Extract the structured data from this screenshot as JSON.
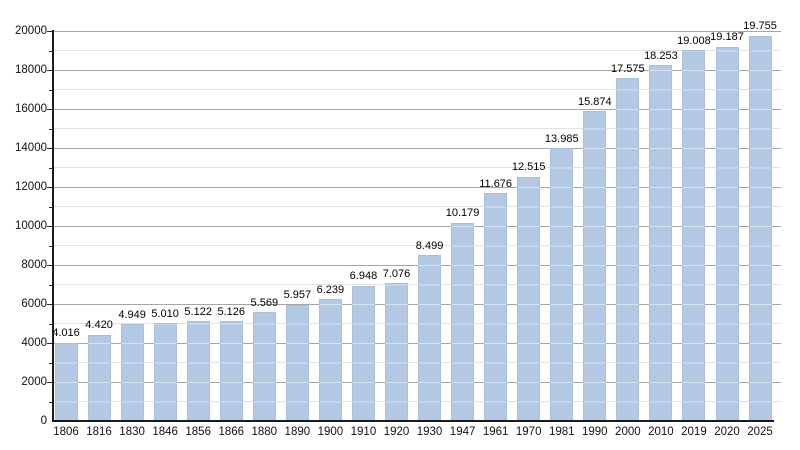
{
  "chart_data": {
    "type": "bar",
    "title": "",
    "xlabel": "",
    "ylabel": "",
    "categories": [
      "1806",
      "1816",
      "1830",
      "1846",
      "1856",
      "1866",
      "1880",
      "1890",
      "1900",
      "1910",
      "1920",
      "1930",
      "1947",
      "1961",
      "1970",
      "1981",
      "1990",
      "2000",
      "2010",
      "2019",
      "2020",
      "2025"
    ],
    "values": [
      4016,
      4420,
      4949,
      5010,
      5122,
      5126,
      5569,
      5957,
      6239,
      6948,
      7076,
      8499,
      10179,
      11676,
      12515,
      13985,
      15874,
      17575,
      18253,
      19008,
      19187,
      19755
    ],
    "value_labels": [
      "4.016",
      "4.420",
      "4.949",
      "5.010",
      "5.122",
      "5.126",
      "5.569",
      "5.957",
      "6.239",
      "6.948",
      "7.076",
      "8.499",
      "10.179",
      "11.676",
      "12.515",
      "13.985",
      "15.874",
      "17.575",
      "18.253",
      "19.008",
      "19.187",
      "19.755"
    ],
    "y_tick_labels": [
      "0",
      "2000",
      "4000",
      "6000",
      "8000",
      "10000",
      "12000",
      "14000",
      "16000",
      "18000",
      "20000"
    ],
    "ylim": [
      0,
      20000
    ],
    "y_major_step": 2000,
    "y_minor_step": 1000,
    "grid": "on",
    "legend": "none",
    "colors": {
      "background": "#ffffff",
      "bar_fill": "#b3c9e3",
      "grid_major": "#a6a6a6",
      "grid_minor": "#e2e2e2",
      "axis": "#1b1b1b",
      "text": "#000000"
    }
  }
}
